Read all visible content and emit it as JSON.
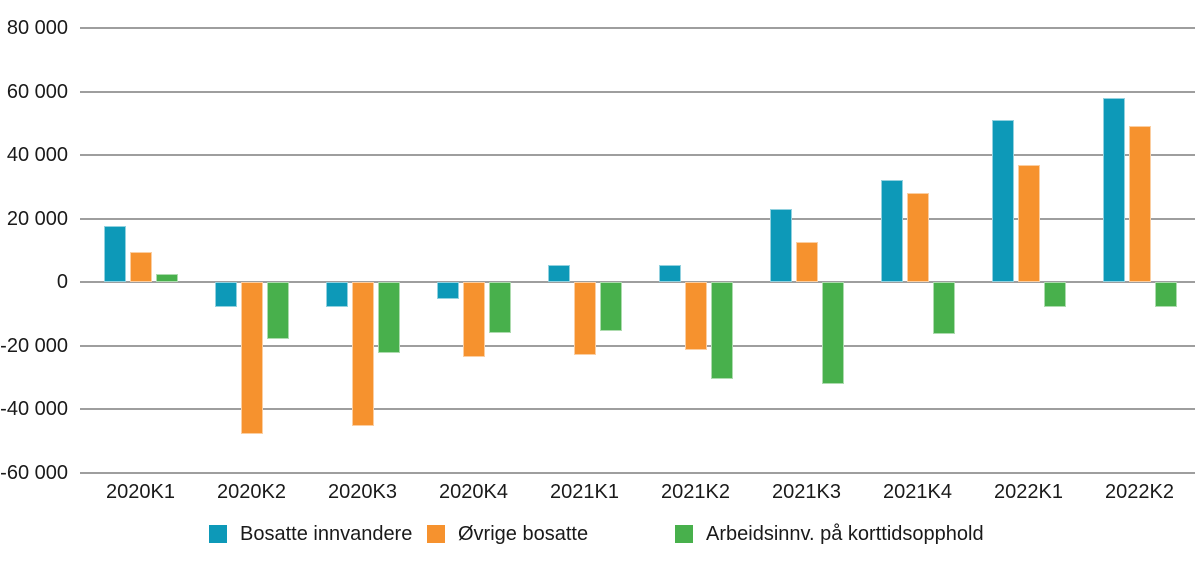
{
  "chart_data": {
    "type": "bar",
    "title": "",
    "xlabel": "",
    "ylabel": "",
    "grid": true,
    "legend_position": "bottom",
    "grid_color": "#9e9e9e",
    "categories": [
      "2020K1",
      "2020K2",
      "2020K3",
      "2020K4",
      "2021K1",
      "2021K2",
      "2021K3",
      "2021K4",
      "2022K1",
      "2022K2"
    ],
    "series": [
      {
        "name": "Bosatte innvandere",
        "color": "#0d99b8",
        "values": [
          17500,
          -8000,
          -8000,
          -5500,
          5500,
          5500,
          23000,
          32000,
          51000,
          58000
        ]
      },
      {
        "name": "Øvrige bosatte",
        "color": "#f6922e",
        "values": [
          9500,
          -48000,
          -45500,
          -23500,
          -23000,
          -21500,
          12500,
          28000,
          37000,
          49000
        ]
      },
      {
        "name": "Arbeidsinnv. på korttidsopphold",
        "color": "#48b04c",
        "values": [
          2500,
          -18000,
          -22500,
          -16000,
          -15500,
          -30500,
          -32000,
          -16500,
          -8000,
          -8000
        ]
      }
    ],
    "y_axis": {
      "min": -60000,
      "max": 80000,
      "tick_step": 20000,
      "ticks": [
        {
          "value": 80000,
          "label": "80 000"
        },
        {
          "value": 60000,
          "label": "60 000"
        },
        {
          "value": 40000,
          "label": "40 000"
        },
        {
          "value": 20000,
          "label": "20 000"
        },
        {
          "value": 0,
          "label": "0"
        },
        {
          "value": -20000,
          "label": "-20 000"
        },
        {
          "value": -40000,
          "label": "-40 000"
        },
        {
          "value": -60000,
          "label": "-60 000"
        }
      ]
    }
  }
}
